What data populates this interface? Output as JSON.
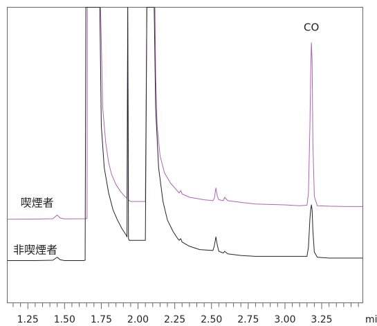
{
  "chart_data": {
    "type": "line",
    "xlabel": "",
    "x_unit": "min",
    "xlim": [
      1.11,
      3.53
    ],
    "ylim": [
      -25,
      150
    ],
    "grid": false,
    "legend": "none",
    "xticks": [
      1.25,
      1.5,
      1.75,
      2.0,
      2.25,
      2.5,
      2.75,
      3.0,
      3.25
    ],
    "xtick_labels": [
      "1.25",
      "1.50",
      "1.75",
      "2.00",
      "2.25",
      "2.50",
      "2.75",
      "3.00",
      "3.25"
    ],
    "minor_tick_step": 0.05,
    "annotations": [
      {
        "text": "CO",
        "x": 3.18,
        "y": 136
      }
    ],
    "series": [
      {
        "name": "喫煙者",
        "color": "#b061b4",
        "label_x": 1.2,
        "label_y": 32,
        "points": [
          [
            1.11,
            24.5
          ],
          [
            1.3,
            24.6
          ],
          [
            1.42,
            24.8
          ],
          [
            1.45,
            27.0
          ],
          [
            1.47,
            25.2
          ],
          [
            1.5,
            24.7
          ],
          [
            1.64,
            24.8
          ],
          [
            1.653,
            24.9
          ],
          [
            1.655,
            150
          ],
          [
            1.745,
            150
          ],
          [
            1.76,
            90
          ],
          [
            1.78,
            70
          ],
          [
            1.8,
            58
          ],
          [
            1.82,
            51
          ],
          [
            1.85,
            45
          ],
          [
            1.88,
            41
          ],
          [
            1.91,
            38
          ],
          [
            1.925,
            37
          ],
          [
            1.93,
            150
          ],
          [
            1.935,
            36
          ],
          [
            1.94,
            35.5
          ],
          [
            1.95,
            35
          ],
          [
            2.05,
            35
          ],
          [
            2.06,
            150
          ],
          [
            2.115,
            150
          ],
          [
            2.12,
            110
          ],
          [
            2.13,
            80
          ],
          [
            2.15,
            62
          ],
          [
            2.18,
            52
          ],
          [
            2.22,
            46
          ],
          [
            2.27,
            41
          ],
          [
            2.28,
            40
          ],
          [
            2.29,
            41.5
          ],
          [
            2.3,
            39.5
          ],
          [
            2.35,
            37.5
          ],
          [
            2.45,
            36
          ],
          [
            2.51,
            35.5
          ],
          [
            2.52,
            37
          ],
          [
            2.53,
            43
          ],
          [
            2.54,
            38
          ],
          [
            2.55,
            36
          ],
          [
            2.58,
            35.5
          ],
          [
            2.59,
            37.5
          ],
          [
            2.61,
            35.5
          ],
          [
            2.7,
            34.5
          ],
          [
            2.8,
            33.5
          ],
          [
            3.0,
            33
          ],
          [
            3.1,
            32.5
          ],
          [
            3.15,
            32.8
          ],
          [
            3.16,
            40
          ],
          [
            3.17,
            80
          ],
          [
            3.175,
            110
          ],
          [
            3.18,
            129
          ],
          [
            3.185,
            118
          ],
          [
            3.19,
            70
          ],
          [
            3.2,
            38
          ],
          [
            3.22,
            32.5
          ],
          [
            3.3,
            32.2
          ],
          [
            3.42,
            32
          ],
          [
            3.53,
            32
          ]
        ]
      },
      {
        "name": "非喫煙者",
        "color": "#222222",
        "label_x": 1.15,
        "label_y": 4,
        "points": [
          [
            1.11,
            0
          ],
          [
            1.3,
            0
          ],
          [
            1.42,
            0.2
          ],
          [
            1.45,
            2
          ],
          [
            1.47,
            0.5
          ],
          [
            1.5,
            0
          ],
          [
            1.63,
            0
          ],
          [
            1.64,
            0.2
          ],
          [
            1.645,
            150
          ],
          [
            1.74,
            150
          ],
          [
            1.75,
            80
          ],
          [
            1.77,
            55
          ],
          [
            1.8,
            40
          ],
          [
            1.83,
            30
          ],
          [
            1.86,
            24
          ],
          [
            1.89,
            19
          ],
          [
            1.92,
            15
          ],
          [
            1.925,
            14
          ],
          [
            1.93,
            150
          ],
          [
            1.935,
            13
          ],
          [
            1.94,
            12
          ],
          [
            1.95,
            12
          ],
          [
            2.05,
            12
          ],
          [
            2.06,
            150
          ],
          [
            2.11,
            150
          ],
          [
            2.12,
            90
          ],
          [
            2.14,
            55
          ],
          [
            2.17,
            35
          ],
          [
            2.2,
            24
          ],
          [
            2.24,
            17
          ],
          [
            2.27,
            13
          ],
          [
            2.28,
            12
          ],
          [
            2.29,
            13
          ],
          [
            2.3,
            11
          ],
          [
            2.35,
            8.5
          ],
          [
            2.42,
            6.5
          ],
          [
            2.51,
            6
          ],
          [
            2.52,
            9
          ],
          [
            2.53,
            14
          ],
          [
            2.54,
            9
          ],
          [
            2.55,
            5.5
          ],
          [
            2.58,
            4.5
          ],
          [
            2.59,
            5.5
          ],
          [
            2.61,
            4
          ],
          [
            2.7,
            3
          ],
          [
            2.8,
            2.5
          ],
          [
            3.0,
            2.5
          ],
          [
            3.1,
            2.5
          ],
          [
            3.15,
            2.5
          ],
          [
            3.16,
            8
          ],
          [
            3.17,
            25
          ],
          [
            3.175,
            30
          ],
          [
            3.18,
            33
          ],
          [
            3.185,
            30
          ],
          [
            3.19,
            18
          ],
          [
            3.2,
            5
          ],
          [
            3.22,
            2
          ],
          [
            3.3,
            1.5
          ],
          [
            3.42,
            1.5
          ],
          [
            3.53,
            1.5
          ]
        ]
      }
    ]
  }
}
